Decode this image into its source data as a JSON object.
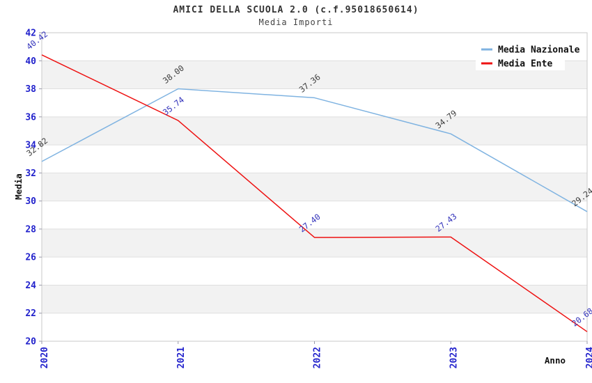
{
  "header": {
    "title": "AMICI DELLA SCUOLA 2.0 (c.f.95018650614)",
    "subtitle": "Media Importi"
  },
  "chart_data": {
    "type": "line",
    "x": [
      "2020",
      "2021",
      "2022",
      "2023",
      "2024"
    ],
    "series": [
      {
        "name": "Media Nazionale",
        "color": "#7FB3E1",
        "label_color": "#3F3F3F",
        "values": [
          32.82,
          38.0,
          37.36,
          34.79,
          29.24
        ]
      },
      {
        "name": "Media Ente",
        "color": "#EE1212",
        "label_color": "#3333BB",
        "values": [
          40.42,
          35.74,
          27.4,
          27.43,
          20.68
        ]
      }
    ],
    "xlabel": "Anno",
    "ylabel": "Media",
    "ylim": [
      20,
      42
    ],
    "ytick_step": 2,
    "yticks": [
      20,
      22,
      24,
      26,
      28,
      30,
      32,
      34,
      36,
      38,
      40,
      42
    ],
    "grid": "horizontal-bands-alternating",
    "legend_position": "top-right",
    "colors": {
      "axis_tick_label": "#2222CC",
      "band_gray": "#F2F2F2",
      "gridline": "#DFDFDF",
      "plot_border": "#C9C9C9",
      "tick_mark": "#9999AA",
      "title_text": "#333333",
      "legend_text": "#111111",
      "axis_title_text": "#111111",
      "legend_background": "#FFFFFF"
    }
  }
}
